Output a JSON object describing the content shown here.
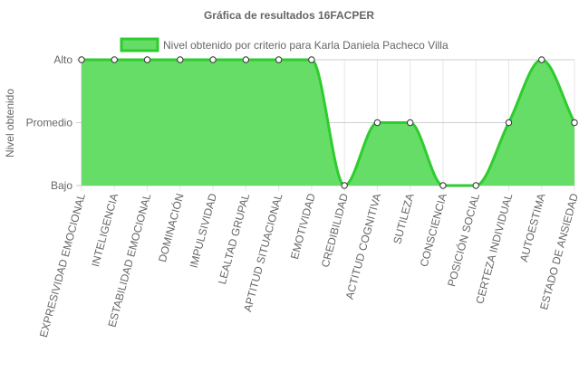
{
  "chart_data": {
    "type": "area",
    "title": "Gráfica de resultados 16FACPER",
    "ylabel": "Nivel obtenido",
    "xlabel": "",
    "y_levels": [
      "Bajo",
      "Promedio",
      "Alto"
    ],
    "ylim": [
      0,
      2
    ],
    "grid": true,
    "legend_position": "top-center",
    "categories": [
      "EXPRESIVIDAD EMOCIONAL",
      "INTELIGENCIA",
      "ESTABILIDAD EMOCIONAL",
      "DOMINACIÓN",
      "IMPULSIVIDAD",
      "LEALTAD GRUPAL",
      "APTITUD SITUACIONAL",
      "EMOTIVIDAD",
      "CREDIBILIDAD",
      "ACTITUD COGNITIVA",
      "SUTILEZA",
      "CONSCIENCIA",
      "POSICIÓN SOCIAL",
      "CERTEZA INDIVIDUAL",
      "AUTOESTIMA",
      "ESTADO DE ANSIEDAD"
    ],
    "series": [
      {
        "name": "Nivel obtenido por criterio para Karla Daniela Pacheco Villa",
        "values": [
          2,
          2,
          2,
          2,
          2,
          2,
          2,
          2,
          0,
          1,
          1,
          0,
          0,
          1,
          2,
          1
        ]
      }
    ],
    "colors": {
      "fill": "#66dd66",
      "line": "#2ecc2e",
      "grid": "#e6e6e6",
      "text": "#666666",
      "point_fill": "#ffffff",
      "point_stroke": "#333333"
    }
  }
}
